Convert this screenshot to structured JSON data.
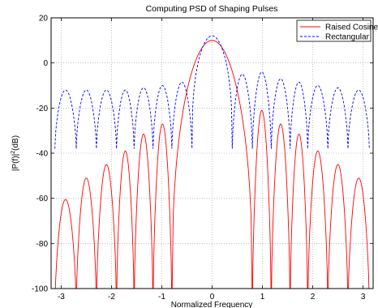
{
  "chart_data": {
    "type": "line",
    "title": "Computing PSD of Shaping Pulses",
    "xlabel": "Normalized Frequency",
    "ylabel_main": "|P(f)|",
    "ylabel_sup": "2",
    "ylabel_unit": "(dB)",
    "xlim": [
      -3.2,
      3.2
    ],
    "ylim": [
      -100,
      20
    ],
    "xticks": [
      -3,
      -2,
      -1,
      0,
      1,
      2,
      3
    ],
    "yticks": [
      -100,
      -80,
      -60,
      -40,
      -20,
      0,
      20
    ],
    "grid": true,
    "legend_position": "top-right",
    "series": [
      {
        "name": "Raised Cosine",
        "color": "#ff0000",
        "style": "solid",
        "peak_db": 10,
        "nulls": [
          -3.125,
          -2.7,
          -2.3,
          -1.9,
          -1.55,
          -1.175,
          -0.8,
          0.8,
          1.175,
          1.55,
          1.9,
          2.3,
          2.7,
          3.125
        ],
        "lobe_peaks_db": [
          -60.5,
          -51,
          -45,
          -39,
          -31.5,
          -27,
          -21,
          -27,
          -31.5,
          -39,
          -45,
          -51,
          -60.5
        ]
      },
      {
        "name": "Rectangular",
        "color": "#0000ff",
        "style": "dashed",
        "peak_db": 12,
        "nulls": [
          -3.125,
          -2.7,
          -2.3,
          -1.9,
          -1.55,
          -1.175,
          -0.8,
          -0.4,
          0.4,
          0.8,
          1.175,
          1.55,
          1.9,
          2.3,
          2.7,
          3.125
        ],
        "lobe_peaks_db": [
          -12,
          -12,
          -12,
          -12,
          -11,
          -10,
          -8.5,
          -5,
          -4,
          -7,
          -8.5,
          -10,
          -11,
          -12,
          -12,
          -12
        ],
        "null_floor_db": -38
      }
    ]
  }
}
